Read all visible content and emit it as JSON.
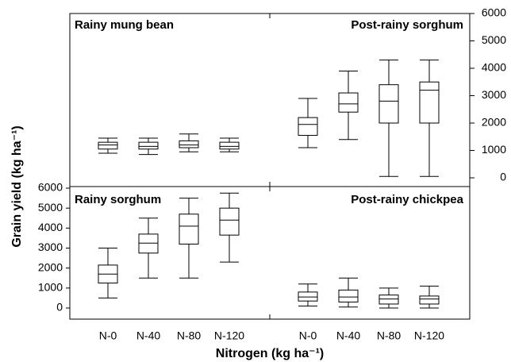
{
  "chart_data": [
    {
      "type": "box",
      "title": "Rainy mung bean",
      "ylim": [
        0,
        6000
      ],
      "boxes": [
        {
          "min": 900,
          "q1": 1050,
          "median": 1200,
          "q3": 1300,
          "max": 1450
        },
        {
          "min": 850,
          "q1": 1050,
          "median": 1150,
          "q3": 1300,
          "max": 1450
        },
        {
          "min": 950,
          "q1": 1100,
          "median": 1200,
          "q3": 1350,
          "max": 1600
        },
        {
          "min": 950,
          "q1": 1050,
          "median": 1150,
          "q3": 1300,
          "max": 1450
        }
      ]
    },
    {
      "type": "box",
      "title": "Post-rainy sorghum",
      "ylim": [
        0,
        6000
      ],
      "yticks": [
        0,
        1000,
        2000,
        3000,
        4000,
        5000,
        6000
      ],
      "boxes": [
        {
          "min": 1100,
          "q1": 1550,
          "median": 1950,
          "q3": 2200,
          "max": 2900
        },
        {
          "min": 1400,
          "q1": 2400,
          "median": 2700,
          "q3": 3100,
          "max": 3900
        },
        {
          "min": 50,
          "q1": 2000,
          "median": 2800,
          "q3": 3400,
          "max": 4300
        },
        {
          "min": 50,
          "q1": 2000,
          "median": 3200,
          "q3": 3500,
          "max": 4300
        }
      ]
    },
    {
      "type": "box",
      "title": "Rainy sorghum",
      "ylim": [
        0,
        6000
      ],
      "yticks": [
        0,
        1000,
        2000,
        3000,
        4000,
        5000,
        6000
      ],
      "y_label": "Grain yield (kg ha⁻¹)",
      "x_label": "Nitrogen (kg ha⁻¹)",
      "categories": [
        "N-0",
        "N-40",
        "N-80",
        "N-120"
      ],
      "boxes": [
        {
          "min": 500,
          "q1": 1250,
          "median": 1700,
          "q3": 2150,
          "max": 3000
        },
        {
          "min": 1500,
          "q1": 2750,
          "median": 3250,
          "q3": 3700,
          "max": 4500
        },
        {
          "min": 1500,
          "q1": 3200,
          "median": 4100,
          "q3": 4700,
          "max": 5500
        },
        {
          "min": 2300,
          "q1": 3650,
          "median": 4400,
          "q3": 5000,
          "max": 5750
        }
      ]
    },
    {
      "type": "box",
      "title": "Post-rainy chickpea",
      "ylim": [
        0,
        6000
      ],
      "categories": [
        "N-0",
        "N-40",
        "N-80",
        "N-120"
      ],
      "boxes": [
        {
          "min": 100,
          "q1": 350,
          "median": 550,
          "q3": 800,
          "max": 1200
        },
        {
          "min": 50,
          "q1": 300,
          "median": 550,
          "q3": 900,
          "max": 1500
        },
        {
          "min": 0,
          "q1": 200,
          "median": 450,
          "q3": 650,
          "max": 1000
        },
        {
          "min": 0,
          "q1": 200,
          "median": 450,
          "q3": 600,
          "max": 1100
        }
      ]
    }
  ]
}
